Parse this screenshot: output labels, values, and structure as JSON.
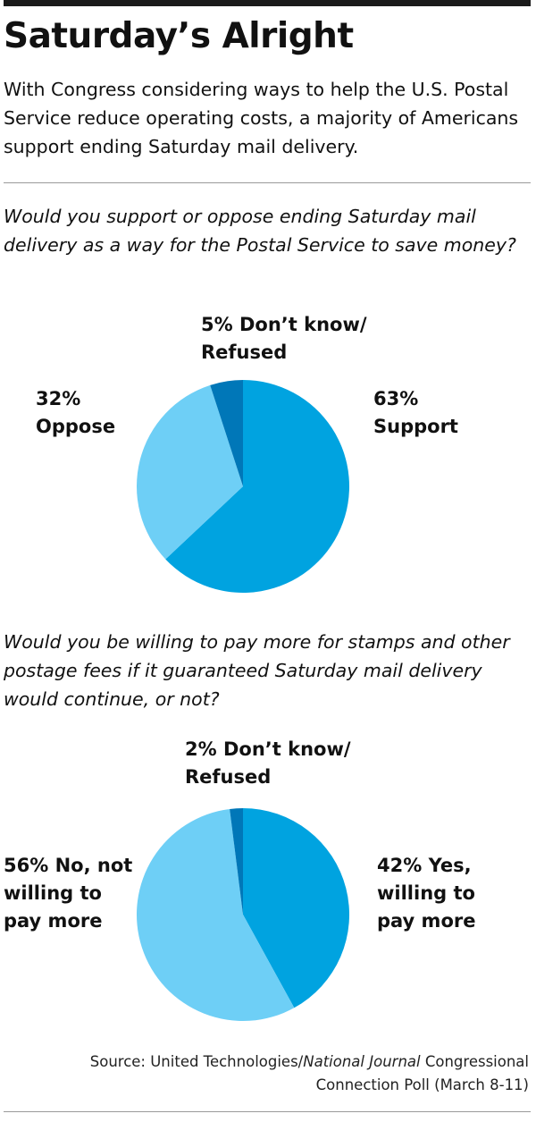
{
  "header": {
    "title": "Saturday’s Alright",
    "subtitle": "With Congress considering ways to help the U.S. Postal Service reduce operating costs, a majority of Americans support ending Saturday mail delivery."
  },
  "colors": {
    "dark": "#0077b8",
    "medium": "#00a3e0",
    "light": "#6ecff6"
  },
  "chart_data": [
    {
      "type": "pie",
      "question": "Would you support or oppose ending Saturday mail delivery as a way for the Postal Service to save money?",
      "slices": [
        {
          "label_line1": "63%",
          "label_line2": "Support",
          "value": 63,
          "color": "#00a3e0"
        },
        {
          "label_line1": "32%",
          "label_line2": "Oppose",
          "value": 32,
          "color": "#6ecff6"
        },
        {
          "label_line1": "5% Don’t know/",
          "label_line2": "Refused",
          "value": 5,
          "color": "#0077b8"
        }
      ]
    },
    {
      "type": "pie",
      "question": "Would you be willing to pay more for stamps and other postage fees if it guaranteed Saturday mail delivery would continue, or not?",
      "slices": [
        {
          "label_line1": "42% Yes,",
          "label_line2": "willing to",
          "label_line3": "pay more",
          "value": 42,
          "color": "#00a3e0"
        },
        {
          "label_line1": "56% No, not",
          "label_line2": "willing to",
          "label_line3": "pay more",
          "value": 56,
          "color": "#6ecff6"
        },
        {
          "label_line1": "2% Don’t know/",
          "label_line2": "Refused",
          "value": 2,
          "color": "#0077b8"
        }
      ]
    }
  ],
  "footer": {
    "source_prefix": "Source: United Technologies/",
    "source_publication": "National Journal",
    "source_suffix": " Congressional Connection Poll (March 8-11)"
  }
}
